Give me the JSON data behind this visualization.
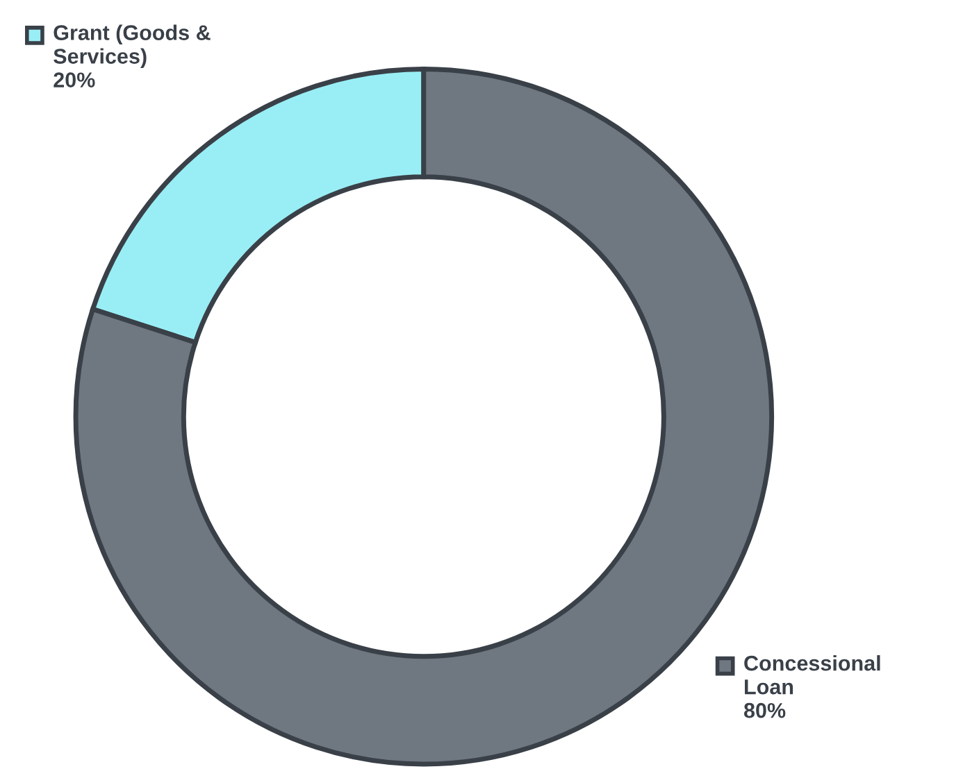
{
  "chart_data": {
    "type": "donut",
    "categories": [
      "Grant (Goods &\nServices)",
      "Concessional\nLoan"
    ],
    "values": [
      20,
      80
    ],
    "value_labels": [
      "20%",
      "80%"
    ],
    "colors": [
      "#99eef5",
      "#6f7780"
    ],
    "legend": "top left"
  }
}
